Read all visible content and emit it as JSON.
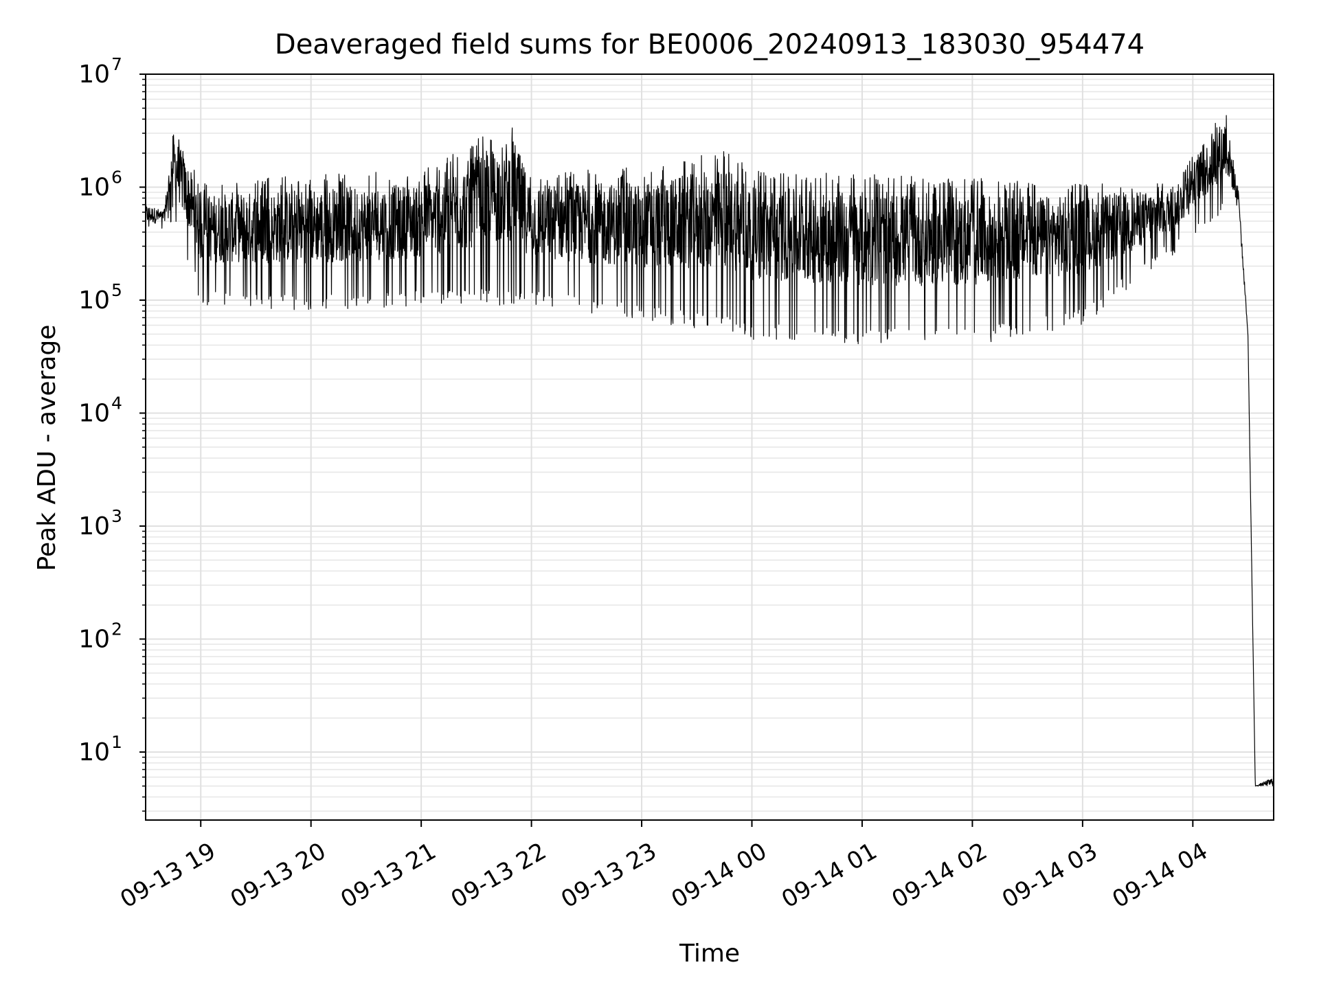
{
  "chart_data": {
    "type": "line",
    "title": "Deaveraged field sums for BE0006_20240913_183030_954474",
    "xlabel": "Time",
    "ylabel": "Peak ADU - average",
    "y_scale": "log",
    "ylim": [
      2.5,
      10000000
    ],
    "xlim": [
      "2024-09-13 18:30",
      "2024-09-14 04:44"
    ],
    "grid": "major and minor, light gray",
    "legend": "none",
    "line_color": "#000000",
    "x_ticks": [
      {
        "value": "2024-09-13 19:00",
        "label": "09-13 19"
      },
      {
        "value": "2024-09-13 20:00",
        "label": "09-13 20"
      },
      {
        "value": "2024-09-13 21:00",
        "label": "09-13 21"
      },
      {
        "value": "2024-09-13 22:00",
        "label": "09-13 22"
      },
      {
        "value": "2024-09-13 23:00",
        "label": "09-13 23"
      },
      {
        "value": "2024-09-14 00:00",
        "label": "09-14 00"
      },
      {
        "value": "2024-09-14 01:00",
        "label": "09-14 01"
      },
      {
        "value": "2024-09-14 02:00",
        "label": "09-14 02"
      },
      {
        "value": "2024-09-14 03:00",
        "label": "09-14 03"
      },
      {
        "value": "2024-09-14 04:00",
        "label": "09-14 04"
      }
    ],
    "y_ticks": [
      {
        "value": 10,
        "base": "10",
        "exp": "1"
      },
      {
        "value": 100,
        "base": "10",
        "exp": "2"
      },
      {
        "value": 1000,
        "base": "10",
        "exp": "3"
      },
      {
        "value": 10000,
        "base": "10",
        "exp": "4"
      },
      {
        "value": 100000,
        "base": "10",
        "exp": "5"
      },
      {
        "value": 1000000,
        "base": "10",
        "exp": "6"
      },
      {
        "value": 10000000,
        "base": "10",
        "exp": "7"
      }
    ],
    "series": [
      {
        "description": "Dense oscillating trace (approx. envelope). Values are Peak ADU - average.",
        "envelope": [
          {
            "t": "2024-09-13 18:30",
            "low": 380000,
            "high": 750000
          },
          {
            "t": "2024-09-13 18:40",
            "low": 400000,
            "high": 650000
          },
          {
            "t": "2024-09-13 18:45",
            "low": 500000,
            "high": 3700000
          },
          {
            "t": "2024-09-13 19:00",
            "low": 90000,
            "high": 1100000
          },
          {
            "t": "2024-09-13 20:00",
            "low": 80000,
            "high": 1300000
          },
          {
            "t": "2024-09-13 21:00",
            "low": 90000,
            "high": 1400000
          },
          {
            "t": "2024-09-13 21:50",
            "low": 90000,
            "high": 4000000
          },
          {
            "t": "2024-09-13 22:00",
            "low": 90000,
            "high": 1400000
          },
          {
            "t": "2024-09-13 23:00",
            "low": 65000,
            "high": 1500000
          },
          {
            "t": "2024-09-13 23:50",
            "low": 50000,
            "high": 2200000
          },
          {
            "t": "2024-09-14 00:00",
            "low": 45000,
            "high": 1400000
          },
          {
            "t": "2024-09-14 01:00",
            "low": 40000,
            "high": 1300000
          },
          {
            "t": "2024-09-14 02:00",
            "low": 40000,
            "high": 1200000
          },
          {
            "t": "2024-09-14 03:00",
            "low": 60000,
            "high": 1100000
          },
          {
            "t": "2024-09-14 03:50",
            "low": 250000,
            "high": 1100000
          },
          {
            "t": "2024-09-14 04:18",
            "low": 600000,
            "high": 5300000
          },
          {
            "t": "2024-09-14 04:25",
            "low": 600000,
            "high": 950000
          },
          {
            "t": "2024-09-14 04:30",
            "low": 50000,
            "high": 50000
          },
          {
            "t": "2024-09-14 04:34",
            "low": 5,
            "high": 5
          },
          {
            "t": "2024-09-14 04:44",
            "low": 5,
            "high": 6
          }
        ]
      }
    ]
  }
}
